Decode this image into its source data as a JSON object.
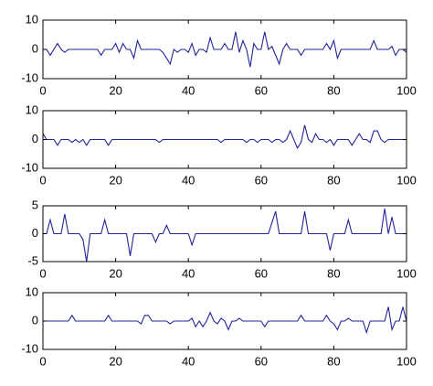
{
  "chart_data": [
    {
      "type": "line",
      "color": "#23239b",
      "x": [
        0,
        1,
        2,
        3,
        4,
        5,
        6,
        7,
        8,
        9,
        10,
        11,
        12,
        13,
        14,
        15,
        16,
        17,
        18,
        19,
        20,
        21,
        22,
        23,
        24,
        25,
        26,
        27,
        28,
        29,
        30,
        31,
        32,
        33,
        34,
        35,
        36,
        37,
        38,
        39,
        40,
        41,
        42,
        43,
        44,
        45,
        46,
        47,
        48,
        49,
        50,
        51,
        52,
        53,
        54,
        55,
        56,
        57,
        58,
        59,
        60,
        61,
        62,
        63,
        64,
        65,
        66,
        67,
        68,
        69,
        70,
        71,
        72,
        73,
        74,
        75,
        76,
        77,
        78,
        79,
        80,
        81,
        82,
        83,
        84,
        85,
        86,
        87,
        88,
        89,
        90,
        91,
        92,
        93,
        94,
        95,
        96,
        97,
        98,
        99,
        100
      ],
      "values": [
        0,
        0,
        -2,
        0,
        2,
        0,
        -1,
        0,
        0,
        0,
        0,
        0,
        0,
        0,
        0,
        0,
        -2,
        0,
        0,
        0,
        2,
        -1,
        2,
        0,
        0,
        -3,
        3,
        0,
        0,
        0,
        0,
        0,
        0,
        -1,
        -3,
        -5,
        0,
        -1,
        0,
        0,
        -1,
        2,
        -2,
        0,
        0,
        -1,
        4,
        0,
        0,
        0,
        2,
        0,
        0,
        6,
        -1,
        3,
        0,
        -6,
        2,
        0,
        0,
        6,
        0,
        1,
        -2,
        -5,
        0,
        2,
        0,
        0,
        0,
        -2,
        0,
        0,
        0,
        0,
        0,
        0,
        2,
        0,
        3,
        -3,
        0,
        0,
        0,
        0,
        0,
        0,
        0,
        0,
        0,
        3,
        0,
        0,
        0,
        0,
        1,
        -2,
        0,
        0,
        -1
      ],
      "xlim": [
        0,
        100
      ],
      "xticks": [
        0,
        20,
        40,
        60,
        80,
        100
      ],
      "ylim": [
        -10,
        10
      ],
      "yticks": [
        -10,
        0,
        10
      ]
    },
    {
      "type": "line",
      "color": "#23239b",
      "x": [
        0,
        1,
        2,
        3,
        4,
        5,
        6,
        7,
        8,
        9,
        10,
        11,
        12,
        13,
        14,
        15,
        16,
        17,
        18,
        19,
        20,
        21,
        22,
        23,
        24,
        25,
        26,
        27,
        28,
        29,
        30,
        31,
        32,
        33,
        34,
        35,
        36,
        37,
        38,
        39,
        40,
        41,
        42,
        43,
        44,
        45,
        46,
        47,
        48,
        49,
        50,
        51,
        52,
        53,
        54,
        55,
        56,
        57,
        58,
        59,
        60,
        61,
        62,
        63,
        64,
        65,
        66,
        67,
        68,
        69,
        70,
        71,
        72,
        73,
        74,
        75,
        76,
        77,
        78,
        79,
        80,
        81,
        82,
        83,
        84,
        85,
        86,
        87,
        88,
        89,
        90,
        91,
        92,
        93,
        94,
        95,
        96,
        97,
        98,
        99,
        100
      ],
      "values": [
        2,
        0,
        0,
        0,
        -2,
        0,
        0,
        0,
        -1,
        0,
        -1,
        0,
        -2,
        0,
        0,
        0,
        0,
        0,
        -2,
        0,
        0,
        0,
        0,
        0,
        0,
        0,
        0,
        0,
        0,
        0,
        0,
        0,
        -1,
        0,
        0,
        0,
        0,
        0,
        0,
        0,
        0,
        0,
        0,
        0,
        0,
        0,
        0,
        0,
        0,
        -1,
        0,
        0,
        0,
        0,
        0,
        0,
        -1,
        0,
        0,
        -1,
        0,
        0,
        0,
        -1,
        0,
        0,
        -1,
        0,
        3,
        0,
        -3,
        -1,
        5,
        0,
        -1,
        2,
        0,
        0,
        -1,
        0,
        -2,
        0,
        0,
        0,
        0,
        -2,
        0,
        2,
        0,
        0,
        -1,
        3,
        3,
        0,
        -1,
        0,
        0,
        0,
        0,
        0,
        0
      ],
      "xlim": [
        0,
        100
      ],
      "xticks": [
        0,
        20,
        40,
        60,
        80,
        100
      ],
      "ylim": [
        -10,
        10
      ],
      "yticks": [
        -10,
        0,
        10
      ]
    },
    {
      "type": "line",
      "color": "#23239b",
      "x": [
        0,
        1,
        2,
        3,
        4,
        5,
        6,
        7,
        8,
        9,
        10,
        11,
        12,
        13,
        14,
        15,
        16,
        17,
        18,
        19,
        20,
        21,
        22,
        23,
        24,
        25,
        26,
        27,
        28,
        29,
        30,
        31,
        32,
        33,
        34,
        35,
        36,
        37,
        38,
        39,
        40,
        41,
        42,
        43,
        44,
        45,
        46,
        47,
        48,
        49,
        50,
        51,
        52,
        53,
        54,
        55,
        56,
        57,
        58,
        59,
        60,
        61,
        62,
        63,
        64,
        65,
        66,
        67,
        68,
        69,
        70,
        71,
        72,
        73,
        74,
        75,
        76,
        77,
        78,
        79,
        80,
        81,
        82,
        83,
        84,
        85,
        86,
        87,
        88,
        89,
        90,
        91,
        92,
        93,
        94,
        95,
        96,
        97,
        98,
        99,
        100
      ],
      "values": [
        0,
        0,
        2.5,
        0,
        0,
        0,
        3.5,
        0,
        0,
        0,
        0,
        -1,
        -5,
        0,
        0,
        0,
        0,
        2.5,
        0,
        0,
        0,
        0,
        0,
        0,
        -4,
        0,
        0,
        0,
        0,
        0,
        0,
        -1.5,
        0,
        0,
        1.5,
        0,
        0,
        0,
        0,
        0,
        0,
        -2,
        0,
        0,
        0,
        0,
        0,
        0,
        0,
        0,
        0,
        0,
        0,
        0,
        0,
        0,
        0,
        0,
        0,
        0,
        0,
        0,
        0,
        2,
        4,
        0,
        0,
        0,
        0,
        0,
        0,
        0,
        4,
        0,
        0,
        0,
        0,
        0,
        0,
        -3,
        0,
        0,
        0,
        0,
        2.5,
        0,
        0,
        0,
        0,
        0,
        0,
        0,
        0,
        0,
        4.5,
        0,
        3,
        0,
        0,
        0,
        0
      ],
      "xlim": [
        0,
        100
      ],
      "xticks": [
        0,
        20,
        40,
        60,
        80,
        100
      ],
      "ylim": [
        -5,
        5
      ],
      "yticks": [
        -5,
        0,
        5
      ]
    },
    {
      "type": "line",
      "color": "#23239b",
      "x": [
        0,
        1,
        2,
        3,
        4,
        5,
        6,
        7,
        8,
        9,
        10,
        11,
        12,
        13,
        14,
        15,
        16,
        17,
        18,
        19,
        20,
        21,
        22,
        23,
        24,
        25,
        26,
        27,
        28,
        29,
        30,
        31,
        32,
        33,
        34,
        35,
        36,
        37,
        38,
        39,
        40,
        41,
        42,
        43,
        44,
        45,
        46,
        47,
        48,
        49,
        50,
        51,
        52,
        53,
        54,
        55,
        56,
        57,
        58,
        59,
        60,
        61,
        62,
        63,
        64,
        65,
        66,
        67,
        68,
        69,
        70,
        71,
        72,
        73,
        74,
        75,
        76,
        77,
        78,
        79,
        80,
        81,
        82,
        83,
        84,
        85,
        86,
        87,
        88,
        89,
        90,
        91,
        92,
        93,
        94,
        95,
        96,
        97,
        98,
        99,
        100
      ],
      "values": [
        0,
        0,
        0,
        0,
        0,
        0,
        0,
        0,
        2,
        0,
        0,
        0,
        0,
        0,
        0,
        0,
        0,
        0,
        2,
        0,
        0,
        0,
        0,
        0,
        0,
        0,
        0,
        -1,
        2,
        2,
        0,
        0,
        0,
        0,
        0,
        -1,
        0,
        0,
        0,
        0,
        0,
        1,
        -2,
        0,
        -2,
        0,
        3,
        0,
        -1,
        1,
        0,
        -3,
        0,
        0,
        1,
        0,
        0,
        0,
        0,
        0,
        0,
        -2,
        0,
        0,
        0,
        0,
        0,
        0,
        0,
        0,
        0,
        2,
        0,
        0,
        0,
        0,
        0,
        0,
        2,
        0,
        -1,
        -3,
        0,
        0,
        1,
        0,
        0,
        0,
        0,
        -4,
        0,
        0,
        0,
        0,
        0,
        5,
        -3,
        0,
        0,
        5,
        0
      ],
      "xlim": [
        0,
        100
      ],
      "xticks": [
        0,
        20,
        40,
        60,
        80,
        100
      ],
      "ylim": [
        -10,
        10
      ],
      "yticks": [
        -10,
        0,
        10
      ]
    }
  ]
}
